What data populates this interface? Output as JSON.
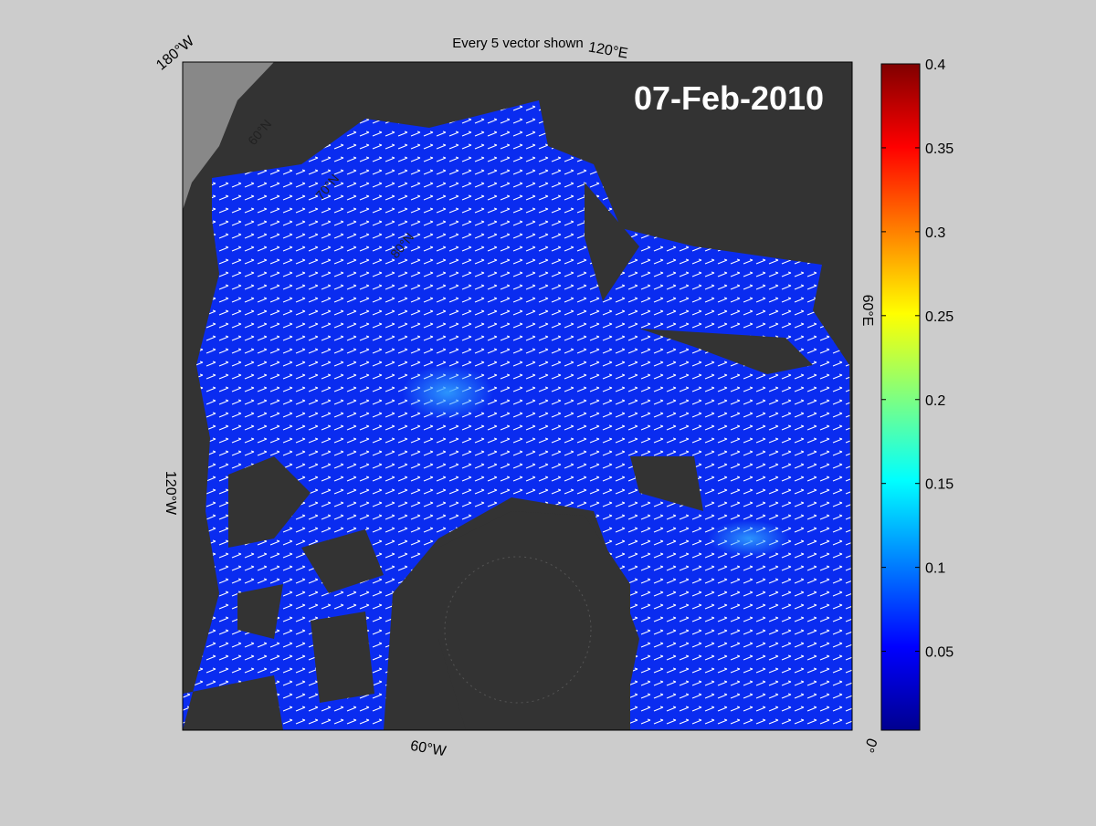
{
  "map": {
    "title": "Every 5 vector shown",
    "date_label": "07-Feb-2010",
    "longitude_labels": [
      "180°W",
      "120°E",
      "60°E",
      "0°",
      "60°W",
      "120°W"
    ],
    "latitude_labels": [
      "60°N",
      "70°N",
      "80°N"
    ],
    "colorbar": {
      "colormap": "jet",
      "lim": [
        0.003,
        0.4
      ],
      "ticks": [
        0.05,
        0.1,
        0.15,
        0.2,
        0.25,
        0.3,
        0.35,
        0.4
      ]
    }
  }
}
